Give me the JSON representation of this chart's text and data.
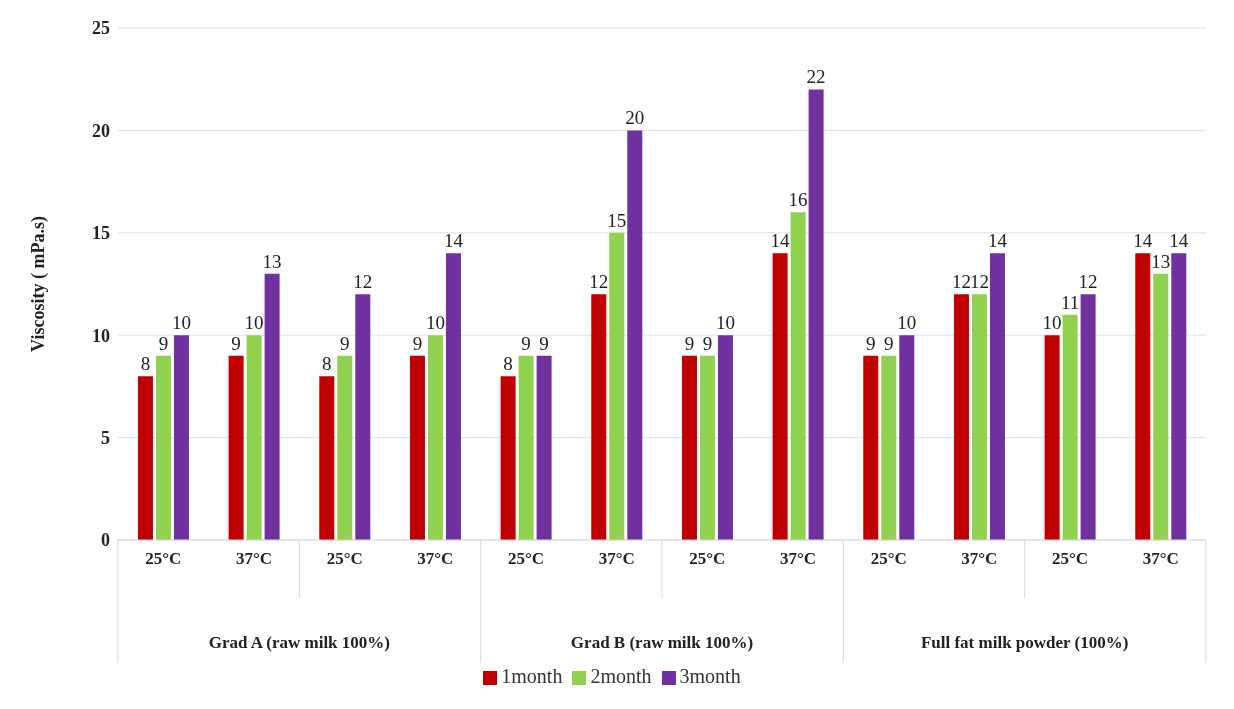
{
  "chart_data": {
    "type": "bar",
    "ylabel": "Viscosity ( mPa.s)",
    "categories": [
      "25°C",
      "37°C",
      "25°C",
      "37°C",
      "25°C",
      "37°C",
      "25°C",
      "37°C",
      "25°C",
      "37°C",
      "25°C",
      "37°C"
    ],
    "series": [
      {
        "name": "1month",
        "color": "#c00000",
        "values": [
          8,
          9,
          8,
          9,
          8,
          12,
          9,
          14,
          9,
          12,
          10,
          14
        ]
      },
      {
        "name": "2month",
        "color": "#92d050",
        "values": [
          9,
          10,
          9,
          10,
          9,
          15,
          9,
          16,
          9,
          12,
          11,
          13
        ]
      },
      {
        "name": "3month",
        "color": "#7030a0",
        "values": [
          10,
          13,
          12,
          14,
          9,
          20,
          10,
          22,
          10,
          14,
          12,
          14
        ]
      }
    ],
    "annotations": [
      "Grad A (raw milk 100%)",
      "Grad B (raw milk 100%)",
      "Full fat milk powder (100%)"
    ],
    "ylim": [
      0,
      25
    ],
    "yticks": [
      0,
      5,
      10,
      15,
      20,
      25
    ],
    "grid": "y",
    "legend": "bottom",
    "data_labels": true
  }
}
